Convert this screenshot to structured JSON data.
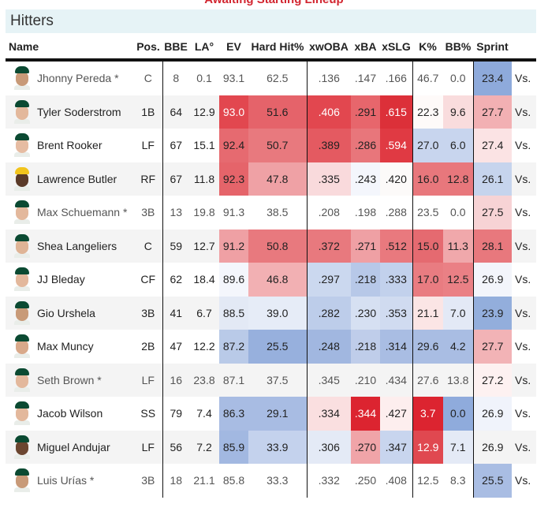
{
  "top_note": "Awaiting Starting Lineup",
  "section_title": "Hitters",
  "columns": [
    "Name",
    "Pos.",
    "BBE",
    "LA°",
    "EV",
    "Hard Hit%",
    "xwOBA",
    "xBA",
    "xSLG",
    "K%",
    "BB%",
    "Sprint"
  ],
  "vs_label": "Vs.",
  "rows": [
    {
      "name": "Jhonny Pereda *",
      "pos": "C",
      "dim": true,
      "skin": "#c89a78",
      "cap": "#0b4a32",
      "cells": [
        {
          "v": "8"
        },
        {
          "v": "0.1"
        },
        {
          "v": "93.1"
        },
        {
          "v": "62.5"
        },
        {
          "v": ".136"
        },
        {
          "v": ".147"
        },
        {
          "v": ".166"
        },
        {
          "v": "46.7"
        },
        {
          "v": "0.0"
        },
        {
          "v": "23.4",
          "bg": "#8eaadb"
        }
      ]
    },
    {
      "name": "Tyler Soderstrom",
      "pos": "1B",
      "skin": "#e3b89c",
      "cap": "#0b4a32",
      "cells": [
        {
          "v": "64"
        },
        {
          "v": "12.9"
        },
        {
          "v": "93.0",
          "bg": "#e2474f",
          "w": 1
        },
        {
          "v": "51.6",
          "bg": "#e5636a"
        },
        {
          "v": ".406",
          "bg": "#e2474f",
          "w": 1
        },
        {
          "v": ".291",
          "bg": "#e7666c"
        },
        {
          "v": ".615",
          "bg": "#dc3039",
          "w": 1
        },
        {
          "v": "22.3",
          "bg": "#fefaf9"
        },
        {
          "v": "9.6",
          "bg": "#f9dcdd"
        },
        {
          "v": "27.7",
          "bg": "#f2b0b3"
        }
      ]
    },
    {
      "name": "Brent Rooker",
      "pos": "LF",
      "skin": "#e6bca2",
      "cap": "#0b4a32",
      "cells": [
        {
          "v": "67"
        },
        {
          "v": "15.1"
        },
        {
          "v": "92.4",
          "bg": "#e66a70"
        },
        {
          "v": "50.7",
          "bg": "#e8797e"
        },
        {
          "v": ".389",
          "bg": "#e45a61"
        },
        {
          "v": ".286",
          "bg": "#e8767b"
        },
        {
          "v": ".594",
          "bg": "#e03a43",
          "w": 1
        },
        {
          "v": "27.0",
          "bg": "#c8d5ee"
        },
        {
          "v": "6.0",
          "bg": "#c8d5ee"
        },
        {
          "v": "27.4",
          "bg": "#fbe3e4"
        }
      ]
    },
    {
      "name": "Lawrence Butler",
      "pos": "RF",
      "skin": "#5a3a28",
      "cap": "#f2c41c",
      "cells": [
        {
          "v": "67"
        },
        {
          "v": "11.8"
        },
        {
          "v": "92.3",
          "bg": "#e5646a"
        },
        {
          "v": "47.8",
          "bg": "#efa1a5"
        },
        {
          "v": ".335",
          "bg": "#f9dadc"
        },
        {
          "v": ".243",
          "bg": "#f4f6fc"
        },
        {
          "v": ".420",
          "bg": "#fcfaf9"
        },
        {
          "v": "16.0",
          "bg": "#e8777c"
        },
        {
          "v": "12.8",
          "bg": "#e8777c"
        },
        {
          "v": "26.1",
          "bg": "#c6d4ed"
        }
      ]
    },
    {
      "name": "Max Schuemann *",
      "pos": "3B",
      "dim": true,
      "skin": "#e3b89c",
      "cap": "#0b4a32",
      "cells": [
        {
          "v": "13"
        },
        {
          "v": "19.8"
        },
        {
          "v": "91.3"
        },
        {
          "v": "38.5"
        },
        {
          "v": ".208"
        },
        {
          "v": ".198"
        },
        {
          "v": ".288"
        },
        {
          "v": "23.5"
        },
        {
          "v": "0.0"
        },
        {
          "v": "27.5",
          "bg": "#f7d3d5"
        }
      ]
    },
    {
      "name": "Shea Langeliers",
      "pos": "C",
      "skin": "#dfb496",
      "cap": "#0b4a32",
      "cells": [
        {
          "v": "59"
        },
        {
          "v": "12.7"
        },
        {
          "v": "91.2",
          "bg": "#efa0a4"
        },
        {
          "v": "50.8",
          "bg": "#e8797e"
        },
        {
          "v": ".372",
          "bg": "#e8797e"
        },
        {
          "v": ".271",
          "bg": "#efa0a4"
        },
        {
          "v": ".512",
          "bg": "#e9797e"
        },
        {
          "v": "15.0",
          "bg": "#e56a70"
        },
        {
          "v": "11.3",
          "bg": "#f0a8ab"
        },
        {
          "v": "28.1",
          "bg": "#e8787d"
        }
      ]
    },
    {
      "name": "JJ Bleday",
      "pos": "CF",
      "skin": "#e3b89c",
      "cap": "#0b4a32",
      "cells": [
        {
          "v": "62"
        },
        {
          "v": "18.4"
        },
        {
          "v": "89.6",
          "bg": "#f4f6fc"
        },
        {
          "v": "46.8",
          "bg": "#f2b0b3"
        },
        {
          "v": ".297",
          "bg": "#cbd8ef"
        },
        {
          "v": ".218",
          "bg": "#b7c8e8"
        },
        {
          "v": ".333",
          "bg": "#c2d1ec"
        },
        {
          "v": "17.0",
          "bg": "#e97c81"
        },
        {
          "v": "12.5",
          "bg": "#ea8085"
        },
        {
          "v": "26.9",
          "bg": "#f3f5fb"
        }
      ]
    },
    {
      "name": "Gio Urshela",
      "pos": "3B",
      "skin": "#c89a78",
      "cap": "#0b4a32",
      "cells": [
        {
          "v": "41"
        },
        {
          "v": "6.7"
        },
        {
          "v": "88.5",
          "bg": "#e3e9f5"
        },
        {
          "v": "39.0",
          "bg": "#e6ecf7"
        },
        {
          "v": ".282",
          "bg": "#bdcdea"
        },
        {
          "v": ".230",
          "bg": "#d6e0f2"
        },
        {
          "v": ".353",
          "bg": "#d0dbf0"
        },
        {
          "v": "21.1",
          "bg": "#fbe5e5"
        },
        {
          "v": "7.0",
          "bg": "#e3e9f6"
        },
        {
          "v": "23.9",
          "bg": "#93aedc"
        }
      ]
    },
    {
      "name": "Max Muncy",
      "pos": "2B",
      "skin": "#d9a98a",
      "cap": "#0b4a32",
      "cells": [
        {
          "v": "47"
        },
        {
          "v": "12.2"
        },
        {
          "v": "87.2",
          "bg": "#b9cae8"
        },
        {
          "v": "25.5",
          "bg": "#97b0dd"
        },
        {
          "v": ".248",
          "bg": "#a1b7e0"
        },
        {
          "v": ".218",
          "bg": "#bfcdea"
        },
        {
          "v": ".314",
          "bg": "#a9bde3"
        },
        {
          "v": "29.6",
          "bg": "#a9bde3"
        },
        {
          "v": "4.2",
          "bg": "#a9bde3"
        },
        {
          "v": "27.7",
          "bg": "#f2b3b6"
        }
      ]
    },
    {
      "name": "Seth Brown *",
      "pos": "LF",
      "dim": true,
      "skin": "#e3b89c",
      "cap": "#0b4a32",
      "cells": [
        {
          "v": "16"
        },
        {
          "v": "23.8"
        },
        {
          "v": "87.1"
        },
        {
          "v": "37.5"
        },
        {
          "v": ".345"
        },
        {
          "v": ".210"
        },
        {
          "v": ".434"
        },
        {
          "v": "27.6"
        },
        {
          "v": "13.8"
        },
        {
          "v": "27.2",
          "bg": "#fdf1f1"
        }
      ]
    },
    {
      "name": "Jacob Wilson",
      "pos": "SS",
      "skin": "#e3b89c",
      "cap": "#0b4a32",
      "cells": [
        {
          "v": "79"
        },
        {
          "v": "7.4"
        },
        {
          "v": "86.3",
          "bg": "#a8bce3"
        },
        {
          "v": "29.1",
          "bg": "#a8bce3"
        },
        {
          "v": ".334",
          "bg": "#fadfe0"
        },
        {
          "v": ".344",
          "bg": "#dc2430",
          "w": 1
        },
        {
          "v": ".427",
          "bg": "#fdeeee"
        },
        {
          "v": "3.7",
          "bg": "#dc2430",
          "w": 1
        },
        {
          "v": "0.0",
          "bg": "#8fabdc"
        },
        {
          "v": "26.9",
          "bg": "#f0f3fb"
        }
      ]
    },
    {
      "name": "Miguel Andujar",
      "pos": "LF",
      "skin": "#6b4630",
      "cap": "#0b4a32",
      "cells": [
        {
          "v": "56"
        },
        {
          "v": "7.2"
        },
        {
          "v": "85.9",
          "bg": "#a2b8e1"
        },
        {
          "v": "33.9",
          "bg": "#c4d2ed"
        },
        {
          "v": ".306",
          "bg": "#e4eaf6"
        },
        {
          "v": ".270",
          "bg": "#f0a4a8"
        },
        {
          "v": ".347",
          "bg": "#c8d5ee"
        },
        {
          "v": "12.9",
          "bg": "#e04850",
          "w": 1
        },
        {
          "v": "7.1",
          "bg": "#e4eaf6"
        },
        {
          "v": "26.9"
        }
      ]
    },
    {
      "name": "Luis Urías *",
      "pos": "3B",
      "dim": true,
      "skin": "#c89a78",
      "cap": "#0b4a32",
      "cells": [
        {
          "v": "18"
        },
        {
          "v": "21.1"
        },
        {
          "v": "85.8"
        },
        {
          "v": "33.3"
        },
        {
          "v": ".332"
        },
        {
          "v": ".250"
        },
        {
          "v": ".408"
        },
        {
          "v": "12.5"
        },
        {
          "v": "8.3"
        },
        {
          "v": "25.5",
          "bg": "#a9bde3"
        }
      ]
    }
  ]
}
